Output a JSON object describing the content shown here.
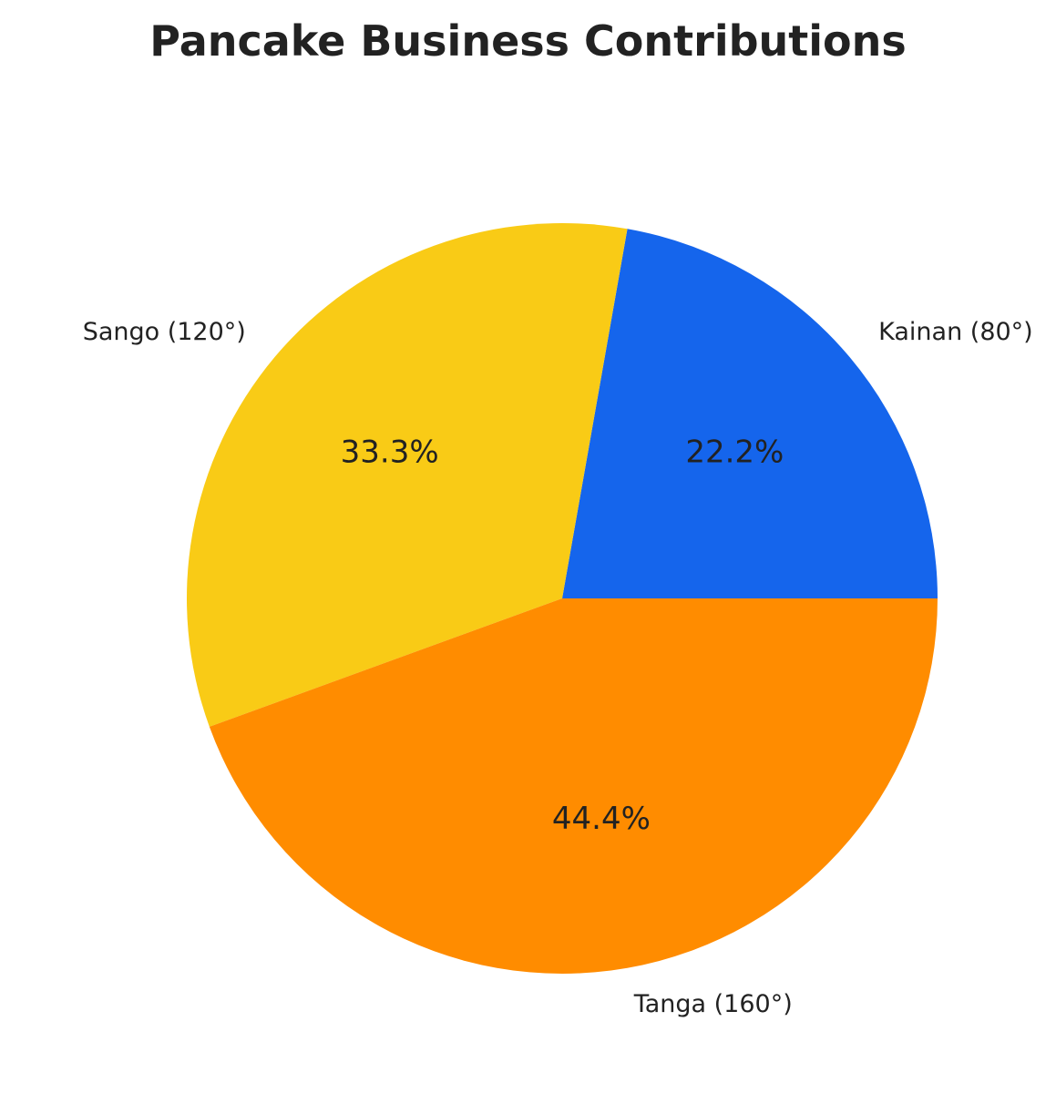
{
  "chart_data": {
    "type": "pie",
    "title": "Pancake Business Contributions",
    "slices": [
      {
        "label": "Kainan (80°)",
        "value": 80,
        "percent_label": "22.2%",
        "color": "#1565EC"
      },
      {
        "label": "Sango (120°)",
        "value": 120,
        "percent_label": "33.3%",
        "color": "#F9CB16"
      },
      {
        "label": "Tanga (160°)",
        "value": 160,
        "percent_label": "44.4%",
        "color": "#FF8C00"
      }
    ],
    "start_angle_deg": 0,
    "direction": "counterclockwise-from-east",
    "legend": "none"
  }
}
